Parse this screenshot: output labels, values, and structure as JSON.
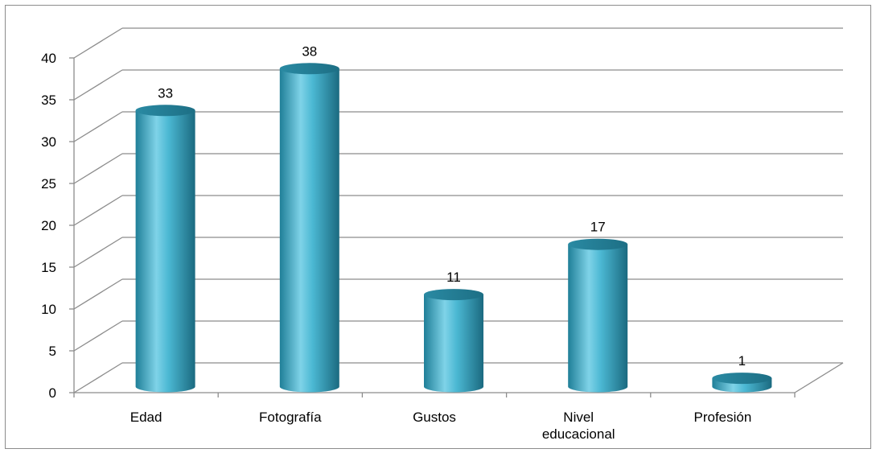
{
  "chart_data": {
    "type": "bar",
    "style": "3d-cylinder",
    "categories": [
      [
        "Edad"
      ],
      [
        "Fotografía"
      ],
      [
        "Gustos"
      ],
      [
        "Nivel",
        "educacional"
      ],
      [
        "Profesión"
      ]
    ],
    "values": [
      33,
      38,
      11,
      17,
      1
    ],
    "data_labels": [
      "33",
      "38",
      "11",
      "17",
      "1"
    ],
    "ylim": [
      0,
      40
    ],
    "yticks": [
      "0",
      "5",
      "10",
      "15",
      "20",
      "25",
      "30",
      "35",
      "40"
    ],
    "grid": true,
    "legend": "none",
    "colors": {
      "bar": "#3fa9c5",
      "bar_light": "#7fd3e8",
      "bar_dark": "#1d6f85",
      "bar_top": "#2f8aa3",
      "grid": "#8c8c8c"
    }
  }
}
